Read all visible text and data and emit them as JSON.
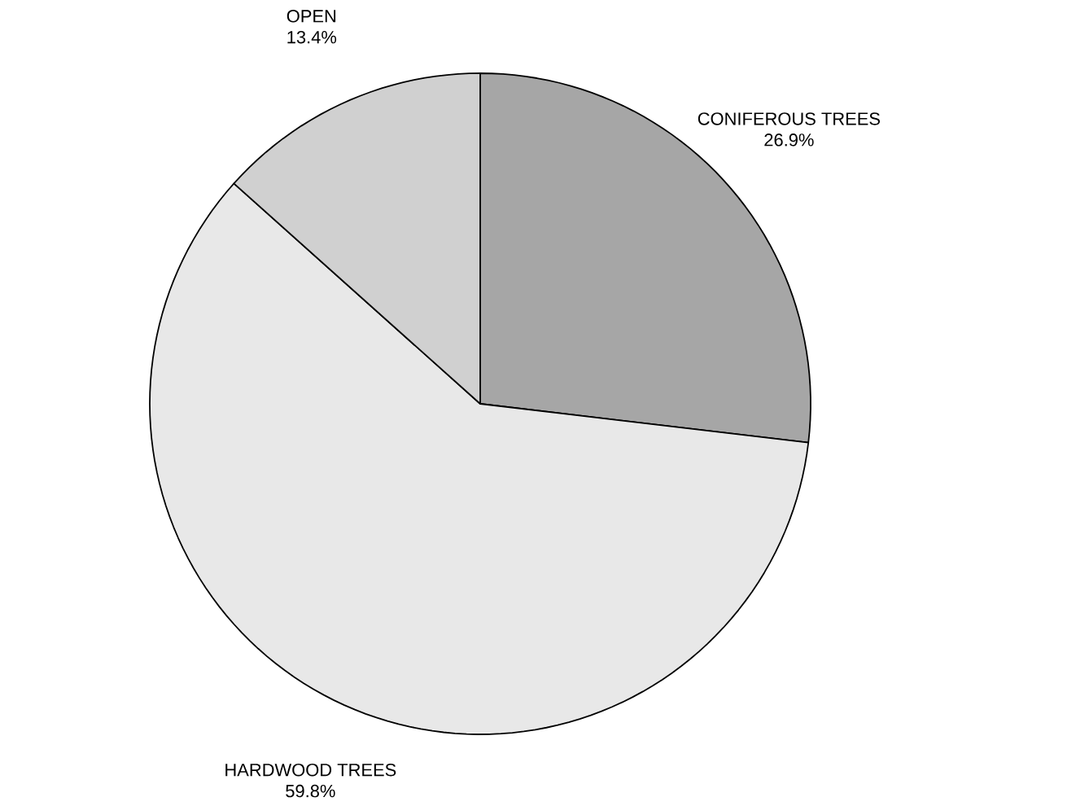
{
  "chart_data": {
    "type": "pie",
    "categories": [
      "CONIFEROUS TREES",
      "HARDWOOD TREES",
      "OPEN"
    ],
    "values": [
      26.9,
      59.8,
      13.4
    ],
    "value_labels": [
      "26.9%",
      "59.8%",
      "13.4%"
    ],
    "colors": [
      "#a6a6a6",
      "#e8e8e8",
      "#d0d0d0"
    ]
  }
}
